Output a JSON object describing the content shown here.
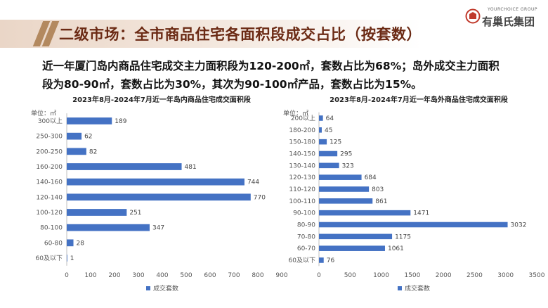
{
  "header": {
    "title": "二级市场：全市商品住宅各面积段成交占比（按套数）",
    "logo_en": "YOURCHOICE GROUP",
    "logo_cn": "有巢氏集团"
  },
  "summary": {
    "line1": "近一年厦门岛内商品住宅成交主力面积段为120-200㎡，套数占比为68%；岛外成交主力面积",
    "line2": "段为80-90㎡，套数占比为30%，其次为90-100㎡产品，套数占比为15%。"
  },
  "colors": {
    "bar": "#4472c4",
    "accent": "#6b2a14",
    "band": "#ead6c7"
  },
  "chart_data": [
    {
      "type": "bar",
      "orientation": "horizontal",
      "title": "2023年8月-2024年7月近一年岛内商品住宅成交面积段",
      "unit_label": "单位：㎡",
      "categories": [
        "300以上",
        "250-300",
        "200-250",
        "160-200",
        "140-160",
        "120-140",
        "100-120",
        "80-100",
        "60-80",
        "60及以下"
      ],
      "series": [
        {
          "name": "成交套数",
          "values": [
            189,
            62,
            82,
            481,
            744,
            770,
            251,
            347,
            28,
            1
          ]
        }
      ],
      "xlim": [
        0,
        900
      ],
      "xticks": [
        "0",
        "100",
        "200",
        "300",
        "400",
        "500",
        "600",
        "700",
        "800",
        "900"
      ],
      "legend_position": "bottom"
    },
    {
      "type": "bar",
      "orientation": "horizontal",
      "title": "2023年8月-2024年7月近一年岛外商品住宅成交面积段",
      "unit_label": "单位：㎡",
      "categories": [
        "200以上",
        "180-200",
        "150-180",
        "140-150",
        "130-140",
        "120-130",
        "110-120",
        "100-110",
        "90-100",
        "80-90",
        "70-80",
        "60-70",
        "60及以下"
      ],
      "series": [
        {
          "name": "成交套数",
          "values": [
            64,
            45,
            125,
            295,
            323,
            684,
            803,
            861,
            1471,
            3032,
            1175,
            1061,
            76
          ]
        }
      ],
      "xlim": [
        0,
        3500
      ],
      "xticks": [
        "0",
        "500",
        "1000",
        "1500",
        "2000",
        "2500",
        "3000",
        "3500"
      ],
      "legend_position": "bottom"
    }
  ]
}
